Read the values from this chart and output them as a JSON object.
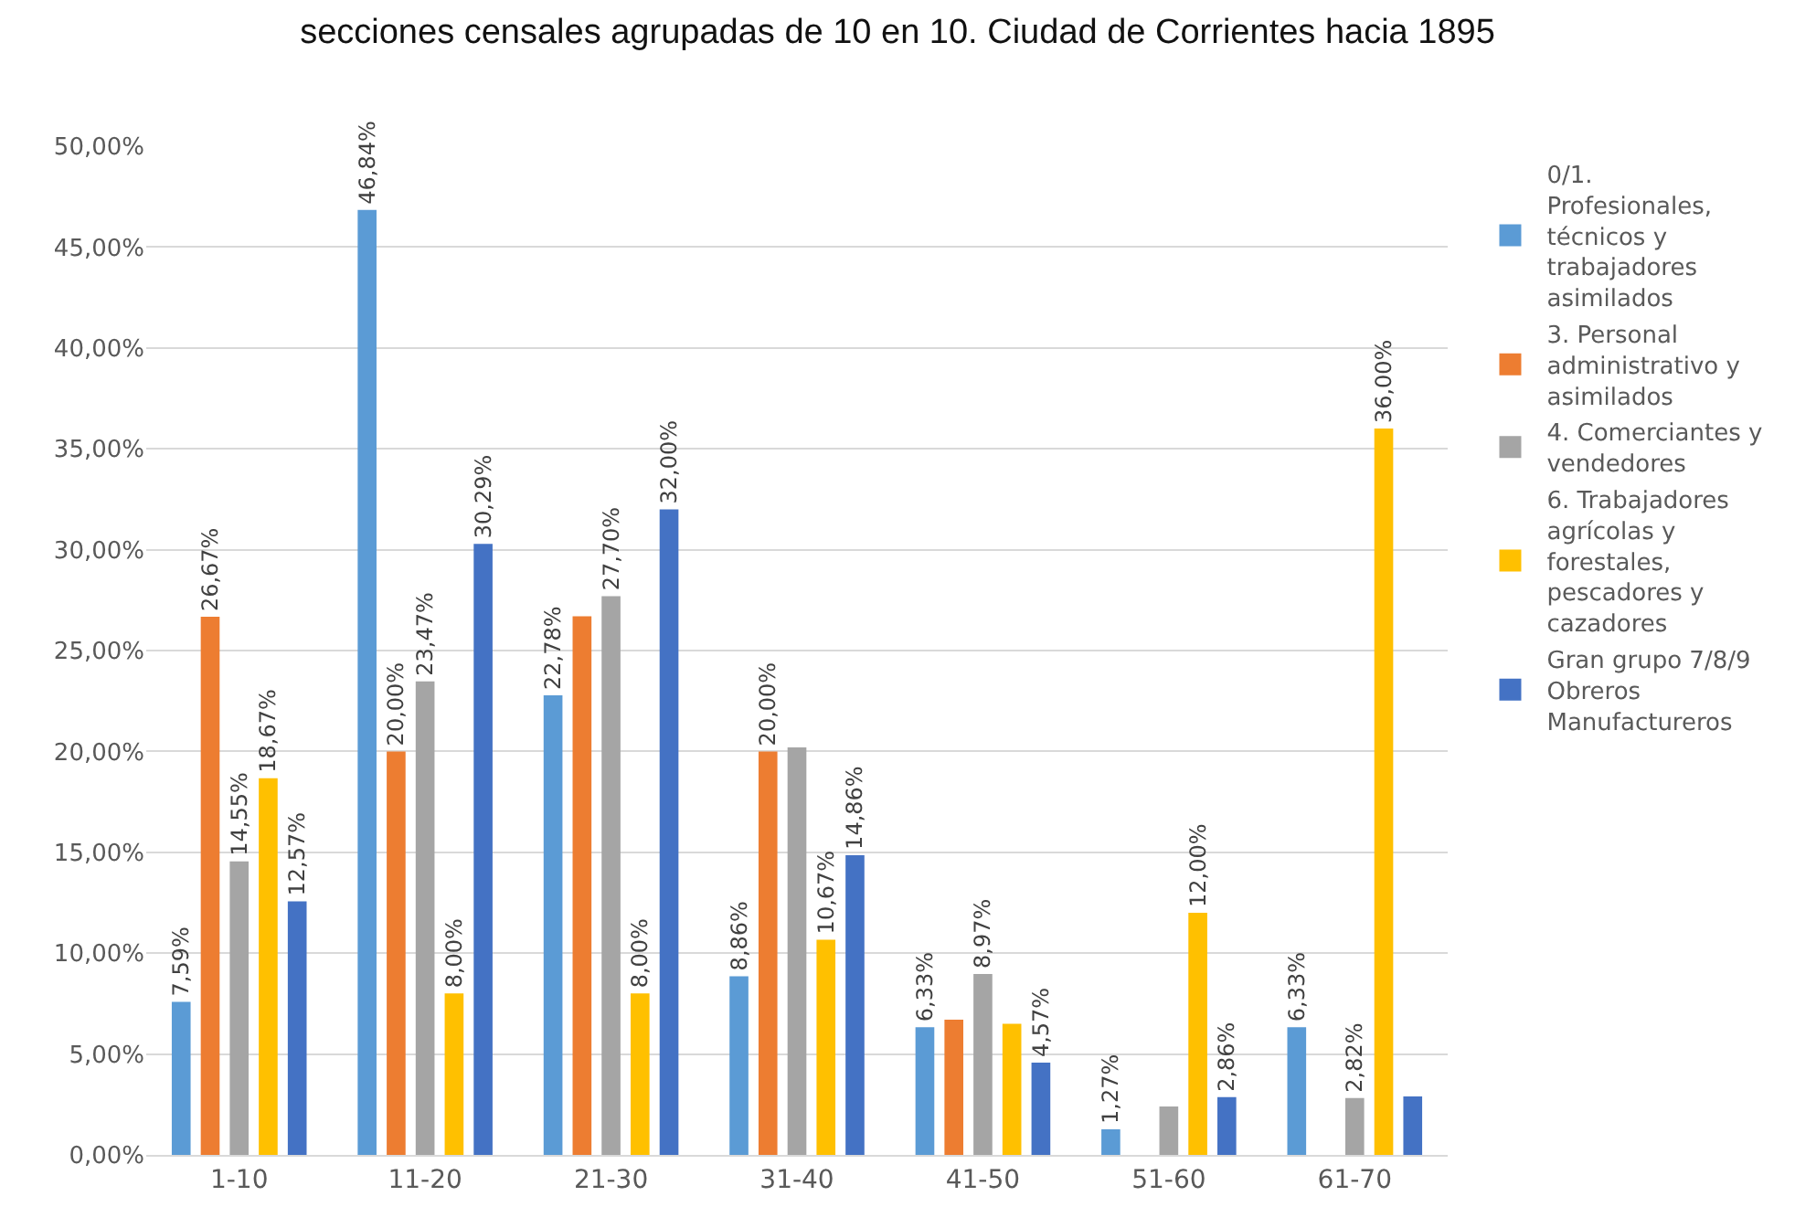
{
  "chart_data": {
    "type": "bar",
    "title": "secciones censales agrupadas de 10 en 10. Ciudad de Corrientes hacia 1895",
    "categories": [
      "1-10",
      "11-20",
      "21-30",
      "31-40",
      "41-50",
      "51-60",
      "61-70"
    ],
    "series": [
      {
        "name": "0/1. Profesionales, técnicos y trabajadores asimilados",
        "color": "#5b9bd5",
        "values": [
          7.59,
          46.84,
          22.78,
          8.86,
          6.33,
          1.27,
          6.33
        ],
        "value_labels": [
          "7,59%",
          "46,84%",
          "22,78%",
          "8,86%",
          "6,33%",
          "1,27%",
          "6,33%"
        ]
      },
      {
        "name": "3. Personal administrativo y asimilados",
        "color": "#ed7d31",
        "values": [
          26.67,
          20.0,
          26.7,
          20.0,
          6.7,
          null,
          null
        ],
        "value_labels": [
          "26,67%",
          "20,00%",
          null,
          "20,00%",
          null,
          null,
          null
        ]
      },
      {
        "name": "4. Comerciantes y vendedores",
        "color": "#a5a5a5",
        "values": [
          14.55,
          23.47,
          27.7,
          20.2,
          8.97,
          2.4,
          2.82
        ],
        "value_labels": [
          "14,55%",
          "23,47%",
          "27,70%",
          null,
          "8,97%",
          null,
          "2,82%"
        ]
      },
      {
        "name": "6. Trabajadores agrícolas y forestales, pescadores y cazadores",
        "color": "#ffc000",
        "values": [
          18.67,
          8.0,
          8.0,
          10.67,
          6.5,
          12.0,
          36.0
        ],
        "value_labels": [
          "18,67%",
          "8,00%",
          "8,00%",
          "10,67%",
          null,
          "12,00%",
          "36,00%"
        ]
      },
      {
        "name": "Gran grupo 7/8/9 Obreros Manufactureros",
        "color": "#4472c4",
        "values": [
          12.57,
          30.29,
          32.0,
          14.86,
          4.57,
          2.86,
          2.9
        ],
        "value_labels": [
          "12,57%",
          "30,29%",
          "32,00%",
          "14,86%",
          "4,57%",
          "2,86%",
          null
        ]
      }
    ],
    "ylim": [
      0,
      50
    ],
    "yticks": [
      {
        "value": 0,
        "label": "0,00%"
      },
      {
        "value": 5,
        "label": "5,00%"
      },
      {
        "value": 10,
        "label": "10,00%"
      },
      {
        "value": 15,
        "label": "15,00%"
      },
      {
        "value": 20,
        "label": "20,00%"
      },
      {
        "value": 25,
        "label": "25,00%"
      },
      {
        "value": 30,
        "label": "30,00%"
      },
      {
        "value": 35,
        "label": "35,00%"
      },
      {
        "value": 40,
        "label": "40,00%"
      },
      {
        "value": 45,
        "label": "45,00%"
      },
      {
        "value": 50,
        "label": "50,00%"
      }
    ],
    "grid": "y",
    "legend": "right"
  }
}
